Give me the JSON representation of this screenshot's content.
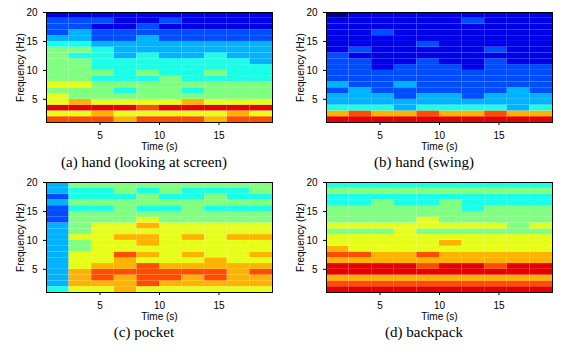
{
  "chart_data": [
    {
      "type": "heatmap",
      "title": "(a) hand (looking at screen)",
      "x_label": "Time (s)",
      "y_label": "Frequency (Hz)",
      "xlim": [
        0.5,
        19.5
      ],
      "ylim": [
        1,
        20
      ],
      "xticks": [
        5,
        10,
        15
      ],
      "yticks": [
        5,
        10,
        15,
        20
      ],
      "x_bins": [
        0.5,
        2.4,
        4.3,
        6.2,
        8.1,
        10,
        11.9,
        13.8,
        15.7,
        17.6,
        19.5
      ],
      "y_bins": [
        1,
        2,
        3,
        4,
        5,
        6,
        7,
        8,
        9,
        10,
        11,
        12,
        13,
        14,
        15,
        16,
        17,
        18,
        19,
        20
      ],
      "zlim": [
        0,
        10
      ],
      "cells": [
        [
          8,
          8,
          8,
          7,
          8,
          8,
          8,
          7,
          8,
          8
        ],
        [
          6,
          6,
          7,
          6,
          6,
          6,
          6,
          6,
          7,
          6
        ],
        [
          9,
          9,
          9,
          9,
          8,
          9,
          9,
          9,
          9,
          9
        ],
        [
          6,
          7,
          6,
          6,
          6,
          6,
          7,
          6,
          6,
          6
        ],
        [
          6,
          5,
          5,
          5,
          5,
          5,
          5,
          5,
          5,
          5
        ],
        [
          5,
          5,
          5,
          4,
          5,
          5,
          4,
          5,
          5,
          5
        ],
        [
          6,
          6,
          5,
          5,
          5,
          5,
          5,
          5,
          5,
          5
        ],
        [
          5,
          5,
          4,
          4,
          4,
          5,
          4,
          4,
          4,
          4
        ],
        [
          5,
          5,
          5,
          4,
          5,
          4,
          4,
          5,
          4,
          4
        ],
        [
          5,
          5,
          4,
          4,
          4,
          4,
          4,
          4,
          4,
          4
        ],
        [
          5,
          5,
          4,
          4,
          4,
          4,
          4,
          4,
          4,
          3
        ],
        [
          5,
          4,
          4,
          3,
          4,
          3,
          3,
          4,
          3,
          3
        ],
        [
          5,
          5,
          4,
          3,
          3,
          3,
          3,
          3,
          3,
          3
        ],
        [
          4,
          4,
          3,
          3,
          3,
          3,
          3,
          3,
          3,
          3
        ],
        [
          3,
          3,
          2,
          2,
          3,
          2,
          2,
          2,
          2,
          2
        ],
        [
          2,
          3,
          2,
          2,
          2,
          2,
          2,
          2,
          2,
          2
        ],
        [
          2,
          2,
          1,
          1,
          2,
          1,
          1,
          1,
          1,
          1
        ],
        [
          2,
          2,
          2,
          1,
          1,
          2,
          1,
          1,
          1,
          1
        ],
        [
          1,
          1,
          1,
          1,
          1,
          1,
          1,
          1,
          1,
          1
        ]
      ]
    },
    {
      "type": "heatmap",
      "title": "(b) hand (swing)",
      "x_label": "Time (s)",
      "y_label": "Frequency (Hz)",
      "xlim": [
        0.5,
        19.5
      ],
      "ylim": [
        1,
        20
      ],
      "xticks": [
        5,
        10,
        15
      ],
      "yticks": [
        5,
        10,
        15,
        20
      ],
      "x_bins": [
        0.5,
        2.4,
        4.3,
        6.2,
        8.1,
        10,
        11.9,
        13.8,
        15.7,
        17.6,
        19.5
      ],
      "y_bins": [
        1,
        2,
        3,
        4,
        5,
        6,
        7,
        8,
        9,
        10,
        11,
        12,
        13,
        14,
        15,
        16,
        17,
        18,
        19,
        20
      ],
      "zlim": [
        0,
        10
      ],
      "cells": [
        [
          9,
          9,
          9,
          9,
          9,
          9,
          9,
          9,
          9,
          9
        ],
        [
          7,
          8,
          7,
          7,
          8,
          7,
          7,
          8,
          7,
          7
        ],
        [
          4,
          4,
          4,
          3,
          4,
          4,
          4,
          4,
          3,
          4
        ],
        [
          3,
          3,
          3,
          3,
          3,
          3,
          3,
          3,
          3,
          3
        ],
        [
          3,
          3,
          3,
          2,
          3,
          3,
          2,
          3,
          3,
          3
        ],
        [
          2,
          3,
          2,
          2,
          2,
          2,
          2,
          2,
          3,
          2
        ],
        [
          3,
          2,
          2,
          3,
          2,
          2,
          2,
          2,
          2,
          2
        ],
        [
          2,
          2,
          2,
          2,
          2,
          2,
          2,
          2,
          2,
          2
        ],
        [
          2,
          2,
          2,
          2,
          2,
          2,
          2,
          2,
          2,
          2
        ],
        [
          2,
          2,
          1,
          2,
          2,
          2,
          1,
          2,
          2,
          2
        ],
        [
          2,
          2,
          1,
          1,
          2,
          1,
          1,
          2,
          1,
          1
        ],
        [
          2,
          1,
          1,
          1,
          1,
          1,
          1,
          1,
          1,
          1
        ],
        [
          1,
          2,
          1,
          1,
          1,
          1,
          1,
          2,
          1,
          1
        ],
        [
          1,
          1,
          1,
          1,
          2,
          1,
          1,
          1,
          1,
          1
        ],
        [
          1,
          1,
          1,
          1,
          1,
          1,
          1,
          1,
          1,
          1
        ],
        [
          1,
          1,
          2,
          1,
          1,
          1,
          1,
          1,
          1,
          1
        ],
        [
          1,
          1,
          1,
          1,
          1,
          1,
          1,
          1,
          1,
          1
        ],
        [
          1,
          1,
          1,
          1,
          1,
          1,
          2,
          1,
          1,
          1
        ],
        [
          0,
          1,
          1,
          1,
          1,
          1,
          1,
          1,
          1,
          1
        ]
      ]
    },
    {
      "type": "heatmap",
      "title": "(c) pocket",
      "x_label": "Time (s)",
      "y_label": "Frequency (Hz)",
      "xlim": [
        0.5,
        19.5
      ],
      "ylim": [
        1,
        20
      ],
      "xticks": [
        5,
        10,
        15
      ],
      "yticks": [
        5,
        10,
        15,
        20
      ],
      "x_bins": [
        0.5,
        2.4,
        4.3,
        6.2,
        8.1,
        10,
        11.9,
        13.8,
        15.7,
        17.6,
        19.5
      ],
      "y_bins": [
        1,
        2,
        3,
        4,
        5,
        6,
        7,
        8,
        9,
        10,
        11,
        12,
        13,
        14,
        15,
        16,
        17,
        18,
        19,
        20
      ],
      "zlim": [
        0,
        10
      ],
      "cells": [
        [
          4,
          6,
          6,
          7,
          6,
          6,
          6,
          6,
          6,
          6
        ],
        [
          3,
          7,
          7,
          7,
          8,
          7,
          7,
          7,
          7,
          7
        ],
        [
          3,
          7,
          8,
          7,
          8,
          8,
          7,
          8,
          7,
          7
        ],
        [
          3,
          7,
          8,
          8,
          8,
          8,
          8,
          8,
          7,
          8
        ],
        [
          3,
          6,
          7,
          7,
          8,
          7,
          7,
          7,
          7,
          7
        ],
        [
          3,
          6,
          6,
          7,
          6,
          6,
          6,
          7,
          6,
          6
        ],
        [
          3,
          6,
          6,
          8,
          7,
          6,
          7,
          6,
          6,
          7
        ],
        [
          3,
          5,
          6,
          6,
          6,
          6,
          6,
          6,
          6,
          6
        ],
        [
          3,
          5,
          6,
          6,
          7,
          6,
          6,
          6,
          6,
          6
        ],
        [
          3,
          6,
          6,
          7,
          7,
          6,
          7,
          6,
          7,
          7
        ],
        [
          3,
          5,
          6,
          6,
          6,
          6,
          6,
          6,
          6,
          6
        ],
        [
          3,
          5,
          6,
          6,
          7,
          6,
          6,
          6,
          6,
          6
        ],
        [
          2,
          5,
          5,
          5,
          6,
          5,
          5,
          5,
          5,
          5
        ],
        [
          2,
          5,
          5,
          5,
          5,
          5,
          5,
          5,
          5,
          5
        ],
        [
          2,
          4,
          4,
          5,
          4,
          4,
          5,
          4,
          4,
          4
        ],
        [
          3,
          5,
          5,
          5,
          5,
          5,
          5,
          5,
          5,
          5
        ],
        [
          2,
          4,
          4,
          4,
          5,
          4,
          4,
          5,
          4,
          4
        ],
        [
          3,
          4,
          4,
          5,
          4,
          5,
          4,
          4,
          4,
          5
        ],
        [
          3,
          5,
          5,
          5,
          5,
          5,
          5,
          5,
          5,
          5
        ]
      ]
    },
    {
      "type": "heatmap",
      "title": "(d) backpack",
      "x_label": "Time (s)",
      "y_label": "Frequency (Hz)",
      "xlim": [
        0.5,
        19.5
      ],
      "ylim": [
        1,
        20
      ],
      "xticks": [
        5,
        10,
        15
      ],
      "yticks": [
        5,
        10,
        15,
        20
      ],
      "x_bins": [
        0.5,
        2.4,
        4.3,
        6.2,
        8.1,
        10,
        11.9,
        13.8,
        15.7,
        17.6,
        19.5
      ],
      "y_bins": [
        1,
        2,
        3,
        4,
        5,
        6,
        7,
        8,
        9,
        10,
        11,
        12,
        13,
        14,
        15,
        16,
        17,
        18,
        19,
        20
      ],
      "zlim": [
        0,
        10
      ],
      "cells": [
        [
          9,
          9,
          9,
          9,
          9,
          9,
          9,
          9,
          9,
          9
        ],
        [
          8,
          8,
          8,
          8,
          8,
          8,
          8,
          8,
          8,
          8
        ],
        [
          7,
          7,
          7,
          7,
          7,
          7,
          7,
          7,
          7,
          7
        ],
        [
          9,
          9,
          9,
          9,
          9,
          9,
          9,
          9,
          9,
          9
        ],
        [
          9,
          9,
          9,
          9,
          8,
          9,
          9,
          8,
          9,
          9
        ],
        [
          7,
          7,
          7,
          7,
          7,
          7,
          7,
          7,
          7,
          7
        ],
        [
          8,
          8,
          7,
          7,
          8,
          7,
          7,
          7,
          7,
          7
        ],
        [
          7,
          6,
          6,
          6,
          6,
          6,
          6,
          6,
          6,
          6
        ],
        [
          6,
          6,
          6,
          6,
          6,
          7,
          6,
          6,
          6,
          6
        ],
        [
          6,
          6,
          6,
          6,
          6,
          6,
          6,
          6,
          6,
          6
        ],
        [
          5,
          5,
          5,
          6,
          5,
          5,
          5,
          5,
          5,
          5
        ],
        [
          6,
          6,
          6,
          6,
          6,
          6,
          6,
          6,
          5,
          6
        ],
        [
          5,
          5,
          5,
          5,
          6,
          5,
          5,
          5,
          5,
          5
        ],
        [
          5,
          5,
          5,
          5,
          5,
          5,
          5,
          5,
          5,
          5
        ],
        [
          5,
          5,
          5,
          5,
          5,
          5,
          4,
          5,
          5,
          5
        ],
        [
          4,
          4,
          5,
          4,
          4,
          5,
          4,
          4,
          4,
          4
        ],
        [
          4,
          4,
          4,
          4,
          4,
          4,
          4,
          4,
          4,
          4
        ],
        [
          5,
          5,
          5,
          5,
          5,
          5,
          5,
          5,
          5,
          5
        ],
        [
          4,
          4,
          4,
          4,
          4,
          4,
          4,
          4,
          4,
          4
        ]
      ]
    }
  ]
}
